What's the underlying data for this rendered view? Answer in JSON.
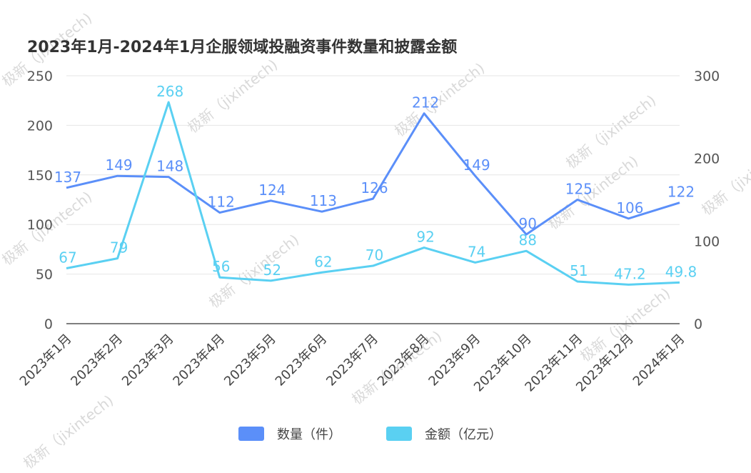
{
  "chart_data": {
    "type": "line",
    "title": "2023年1月-2024年1月企服领域投融资事件数量和披露金额",
    "categories": [
      "2023年1月",
      "2023年2月",
      "2023年3月",
      "2023年4月",
      "2023年5月",
      "2023年6月",
      "2023年7月",
      "2023年8月",
      "2023年9月",
      "2023年10月",
      "2023年11月",
      "2023年12月",
      "2024年1月"
    ],
    "series": [
      {
        "name": "数量（件）",
        "axis": "left",
        "color": "#5B8FF9",
        "values": [
          137,
          149,
          148,
          112,
          124,
          113,
          126,
          212,
          149,
          90,
          125,
          106,
          122
        ],
        "labels": [
          "137",
          "149",
          "148",
          "112",
          "124",
          "113",
          "126",
          "212",
          "149",
          "90",
          "125",
          "106",
          "122"
        ]
      },
      {
        "name": "金额（亿元）",
        "axis": "right",
        "color": "#5AD0F2",
        "values": [
          67,
          79,
          268,
          56,
          52,
          62,
          70,
          92,
          74,
          88,
          51,
          47.2,
          49.8
        ],
        "labels": [
          "67",
          "79",
          "268",
          "56",
          "52",
          "62",
          "70",
          "92",
          "74",
          "88",
          "51",
          "47.2",
          "49.8"
        ]
      }
    ],
    "y_left": {
      "ylim": [
        0,
        250
      ],
      "ticks": [
        "0",
        "50",
        "100",
        "150",
        "200",
        "250"
      ]
    },
    "y_right": {
      "ylim": [
        0,
        300
      ],
      "ticks": [
        "0",
        "100",
        "200",
        "300"
      ]
    },
    "grid": true,
    "legend": "bottom-center"
  },
  "watermark": "极新（jixintech)"
}
